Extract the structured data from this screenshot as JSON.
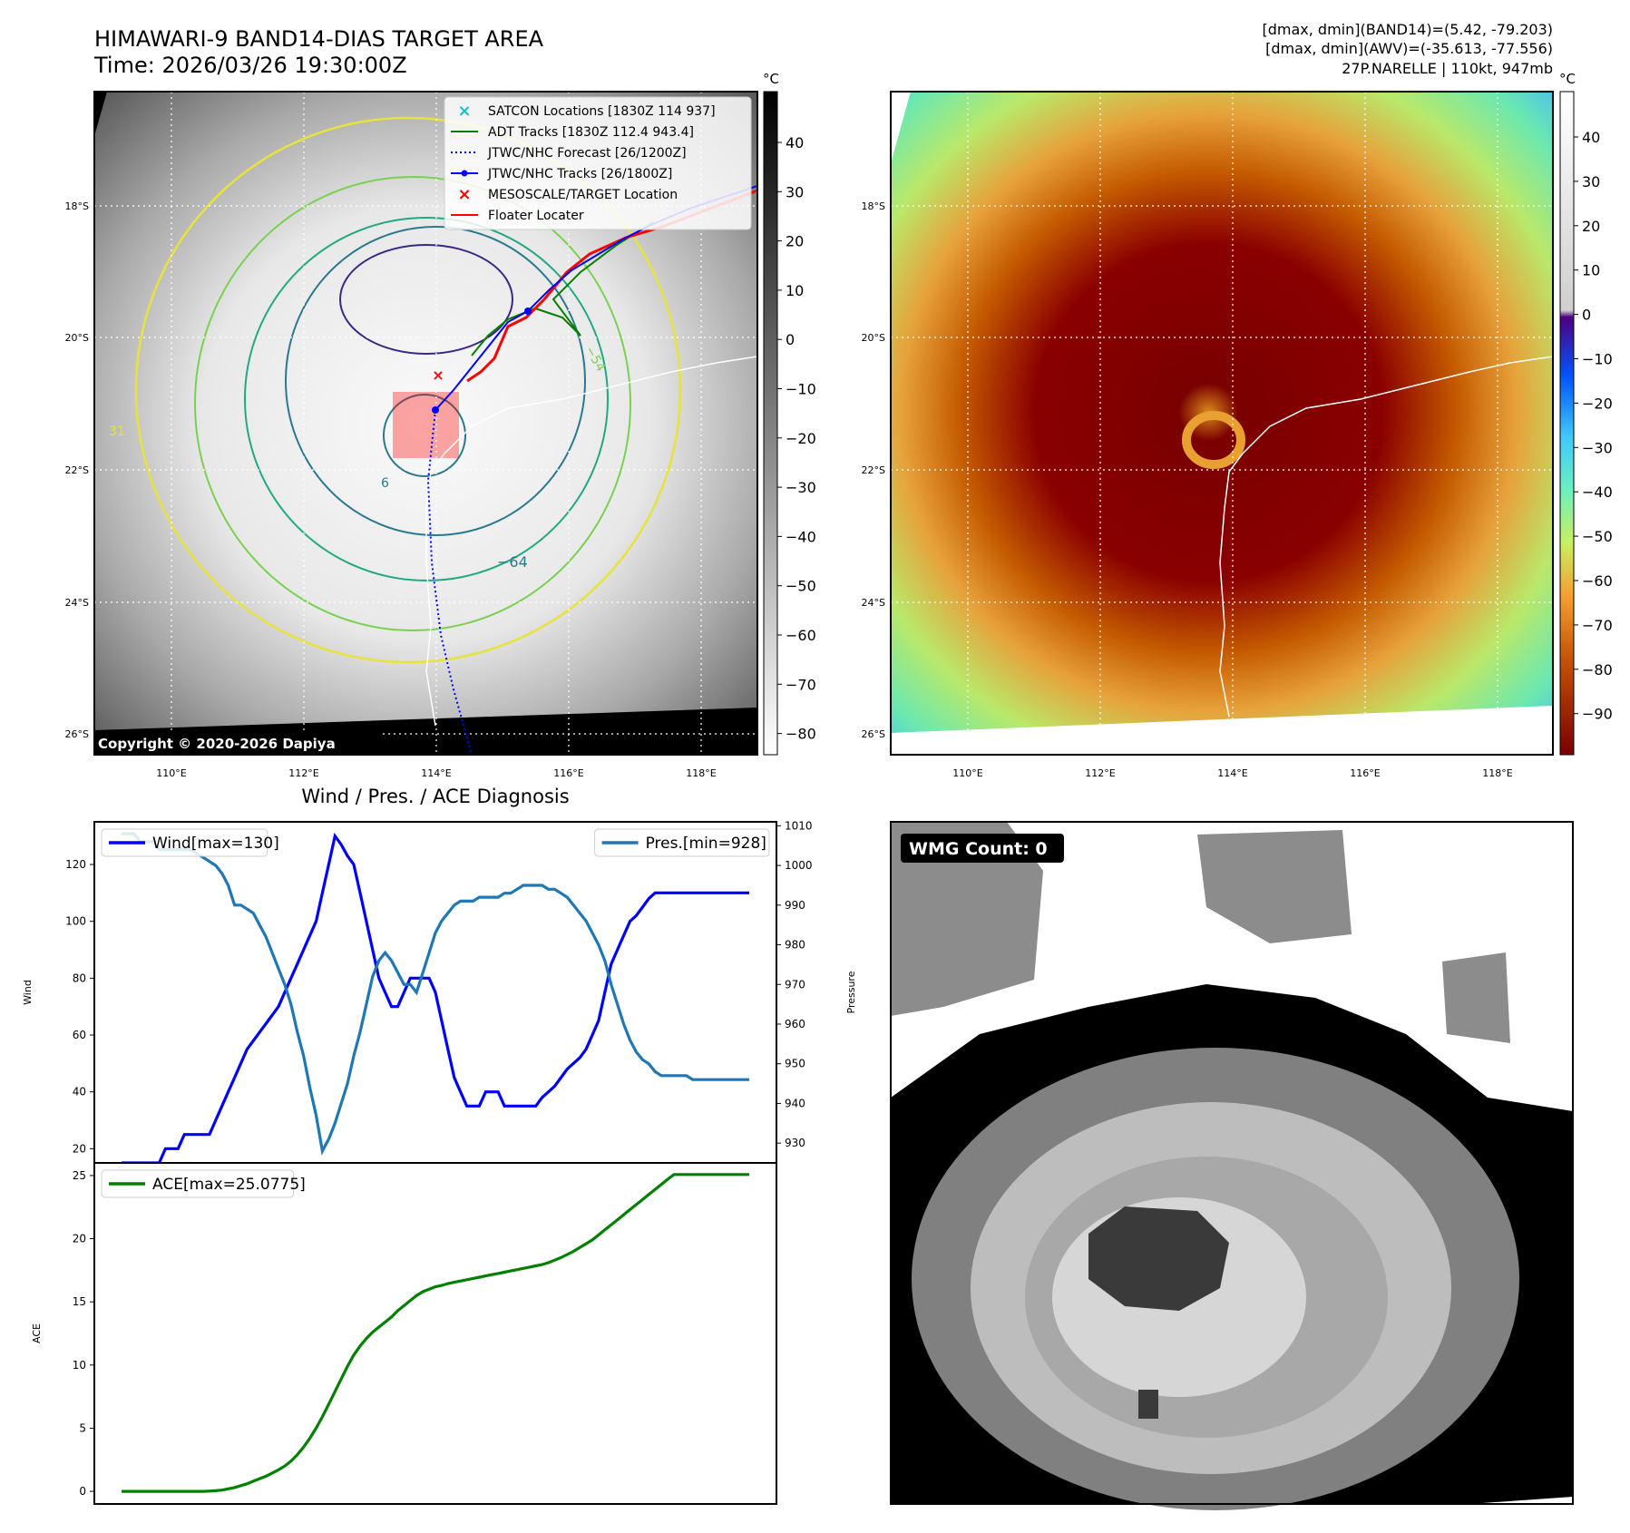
{
  "header": {
    "title": "HIMAWARI-9 BAND14-DIAS TARGET AREA",
    "time": "Time: 2026/03/26 19:30:00Z",
    "stats_line1": "[dmax, dmin](BAND14)=(5.42, -79.203)",
    "stats_line2": "[dmax, dmin](AWV)=(-35.613, -77.556)",
    "storm_line": "27P.NARELLE | 110kt, 947mb"
  },
  "map_axes": {
    "lat_ticks": [
      "18°S",
      "20°S",
      "22°S",
      "24°S",
      "26°S"
    ],
    "lon_ticks": [
      "110°E",
      "112°E",
      "114°E",
      "116°E",
      "118°E"
    ]
  },
  "left_colorbar": {
    "unit": "°C",
    "ticks": [
      "40",
      "30",
      "20",
      "10",
      "0",
      "−10",
      "−20",
      "−30",
      "−40",
      "−50",
      "−60",
      "−70",
      "−80"
    ]
  },
  "right_colorbar": {
    "unit": "°C",
    "ticks": [
      "40",
      "30",
      "20",
      "10",
      "0",
      "−10",
      "−20",
      "−30",
      "−40",
      "−50",
      "−60",
      "−70",
      "−80",
      "−90"
    ]
  },
  "legend": {
    "items": [
      {
        "label": "SATCON Locations [1830Z 114 937]",
        "color": "#17becf",
        "kind": "x"
      },
      {
        "label": "ADT Tracks [1830Z 112.4 943.4]",
        "color": "#008000",
        "kind": "line"
      },
      {
        "label": "JTWC/NHC Forecast [26/1200Z]",
        "color": "#0000ff",
        "kind": "dotted"
      },
      {
        "label": "JTWC/NHC Tracks [26/1800Z]",
        "color": "#0000ff",
        "kind": "line-dot"
      },
      {
        "label": "MESOSCALE/TARGET Location",
        "color": "#ff0000",
        "kind": "x"
      },
      {
        "label": "Floater Locater",
        "color": "#ff0000",
        "kind": "line"
      }
    ]
  },
  "map_labels": {
    "copyright": "Copyright © 2020-2026 Dapiya",
    "contour_64": "−64",
    "contour_54": "−54",
    "contour_6": "6",
    "contour_31": "31"
  },
  "wmg": {
    "label": "WMG Count: 0"
  },
  "chart_data": [
    {
      "type": "line",
      "title": "Wind / Pres. / ACE Diagnosis",
      "ylabel": "Wind",
      "ylabel_right": "Pressure",
      "ylim": [
        15,
        135
      ],
      "ylim_right": [
        925,
        1011
      ],
      "yticks": [
        20,
        40,
        60,
        80,
        100,
        120
      ],
      "yticks_right": [
        930,
        940,
        950,
        960,
        970,
        980,
        990,
        1000,
        1010
      ],
      "x": [
        0,
        1,
        2,
        3,
        4,
        5,
        6,
        7,
        8,
        9,
        10,
        11,
        12,
        13,
        14,
        15,
        16,
        17,
        18,
        19,
        20,
        21,
        22,
        23,
        24,
        25,
        26,
        27,
        28,
        29,
        30,
        31,
        32,
        33,
        34,
        35,
        36,
        37,
        38,
        39,
        40,
        41,
        42,
        43,
        44,
        45,
        46,
        47,
        48,
        49,
        50,
        51,
        52,
        53,
        54,
        55,
        56,
        57,
        58,
        59,
        60,
        61,
        62,
        63,
        64,
        65,
        66,
        67,
        68,
        69,
        70,
        71,
        72,
        73,
        74,
        75,
        76,
        77,
        78,
        79,
        80,
        81,
        82,
        83,
        84,
        85,
        86,
        87,
        88,
        89,
        90,
        91,
        92,
        93,
        94,
        95,
        96,
        97,
        98,
        99,
        100
      ],
      "series": [
        {
          "name": "Wind[max=130]",
          "color": "#0000ff",
          "axis": "left",
          "values": [
            15,
            15,
            15,
            15,
            15,
            15,
            15,
            20,
            20,
            20,
            25,
            25,
            25,
            25,
            25,
            30,
            35,
            40,
            45,
            50,
            55,
            58,
            61,
            64,
            67,
            70,
            75,
            80,
            85,
            90,
            95,
            100,
            110,
            120,
            130,
            127,
            123,
            120,
            110,
            100,
            90,
            80,
            75,
            70,
            70,
            75,
            80,
            80,
            80,
            80,
            75,
            65,
            55,
            45,
            40,
            35,
            35,
            35,
            40,
            40,
            40,
            35,
            35,
            35,
            35,
            35,
            35,
            38,
            40,
            42,
            45,
            48,
            50,
            52,
            55,
            60,
            65,
            75,
            85,
            90,
            95,
            100,
            102,
            105,
            108,
            110,
            110,
            110,
            110,
            110,
            110,
            110,
            110,
            110,
            110,
            110,
            110,
            110,
            110,
            110,
            110
          ]
        },
        {
          "name": "Pres.[min=928]",
          "color": "#1f77b4",
          "axis": "right",
          "values": [
            1008,
            1008,
            1008,
            1006,
            1006,
            1006,
            1004,
            1004,
            1004,
            1004,
            1004,
            1004,
            1003,
            1002,
            1001,
            1000,
            998,
            995,
            990,
            990,
            989,
            988,
            985,
            982,
            978,
            974,
            970,
            965,
            958,
            952,
            944,
            937,
            928,
            931,
            935,
            940,
            945,
            952,
            958,
            965,
            972,
            976,
            978,
            976,
            973,
            970,
            970,
            968,
            973,
            978,
            983,
            986,
            988,
            990,
            991,
            991,
            991,
            992,
            992,
            992,
            992,
            993,
            993,
            994,
            995,
            995,
            995,
            995,
            994,
            994,
            993,
            992,
            990,
            988,
            986,
            983,
            980,
            976,
            970,
            965,
            960,
            956,
            953,
            951,
            950,
            948,
            947,
            947,
            947,
            947,
            947,
            946,
            946,
            946,
            946,
            946,
            946,
            946,
            946,
            946,
            946
          ]
        }
      ],
      "legend_left": "top-left",
      "legend_right": "top-right"
    },
    {
      "type": "line",
      "ylabel": "ACE",
      "ylim": [
        -1,
        26
      ],
      "yticks": [
        0,
        5,
        10,
        15,
        20,
        25
      ],
      "series": [
        {
          "name": "ACE[max=25.0775]",
          "color": "#008000",
          "values": [
            0,
            0,
            0,
            0,
            0,
            0,
            0,
            0,
            0,
            0,
            0,
            0,
            0,
            0,
            0.02,
            0.05,
            0.1,
            0.2,
            0.3,
            0.45,
            0.6,
            0.8,
            1.0,
            1.2,
            1.45,
            1.7,
            2.0,
            2.4,
            2.9,
            3.5,
            4.2,
            5.0,
            5.9,
            6.9,
            7.9,
            8.9,
            9.9,
            10.8,
            11.5,
            12.1,
            12.6,
            13.0,
            13.4,
            13.8,
            14.3,
            14.7,
            15.1,
            15.5,
            15.8,
            16.0,
            16.2,
            16.3,
            16.45,
            16.55,
            16.65,
            16.75,
            16.85,
            16.95,
            17.05,
            17.15,
            17.25,
            17.35,
            17.45,
            17.55,
            17.65,
            17.75,
            17.85,
            17.95,
            18.1,
            18.3,
            18.5,
            18.75,
            19.0,
            19.3,
            19.6,
            19.9,
            20.3,
            20.7,
            21.1,
            21.5,
            21.9,
            22.3,
            22.7,
            23.1,
            23.5,
            23.9,
            24.3,
            24.7,
            25.0775,
            25.0775,
            25.0775,
            25.0775,
            25.0775,
            25.0775,
            25.0775,
            25.0775,
            25.0775,
            25.0775,
            25.0775,
            25.0775,
            25.0775
          ]
        }
      ],
      "legend": "top-left"
    }
  ]
}
